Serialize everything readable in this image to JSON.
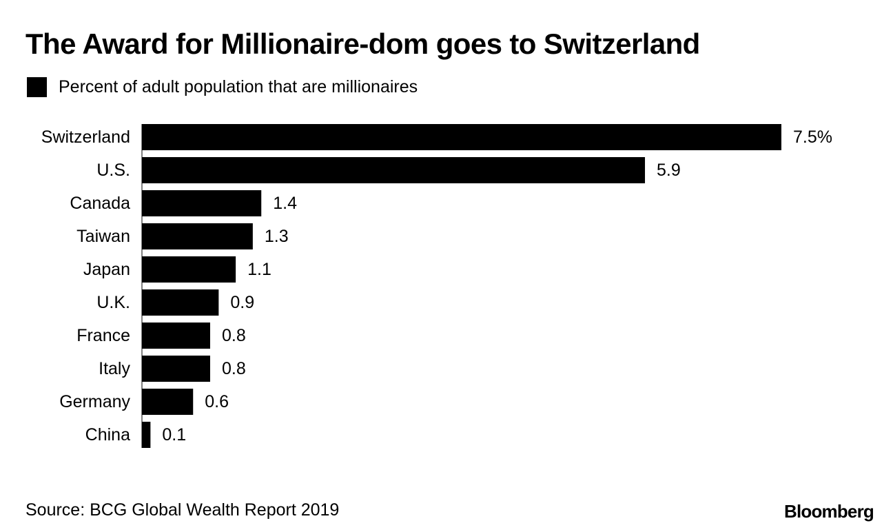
{
  "chart_data": {
    "type": "bar",
    "orientation": "horizontal",
    "title": "The Award for Millionaire-dom goes to Switzerland",
    "legend": [
      {
        "label": "Percent of adult population that are millionaires",
        "color": "#000000"
      }
    ],
    "categories": [
      "Switzerland",
      "U.S.",
      "Canada",
      "Taiwan",
      "Japan",
      "U.K.",
      "France",
      "Italy",
      "Germany",
      "China"
    ],
    "values": [
      7.5,
      5.9,
      1.4,
      1.3,
      1.1,
      0.9,
      0.8,
      0.8,
      0.6,
      0.1
    ],
    "value_labels": [
      "7.5%",
      "5.9",
      "1.4",
      "1.3",
      "1.1",
      "0.9",
      "0.8",
      "0.8",
      "0.6",
      "0.1"
    ],
    "xlim": [
      0,
      7.5
    ],
    "xlabel": "",
    "ylabel": "",
    "grid": false,
    "bar_color": "#000000"
  },
  "source": "Source: BCG Global Wealth Report 2019",
  "brand": "Bloomberg"
}
